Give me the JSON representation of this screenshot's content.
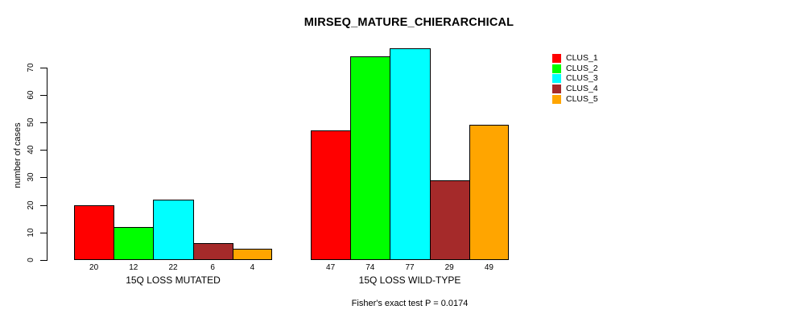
{
  "chart_data": {
    "type": "bar",
    "title": "MIRSEQ_MATURE_CHIERARCHICAL",
    "ylabel": "number of cases",
    "xlabel": "",
    "ylim": [
      0,
      70
    ],
    "yticks": [
      0,
      10,
      20,
      30,
      40,
      50,
      60,
      70
    ],
    "grid": false,
    "legend_position": "right",
    "categories": [
      "15Q LOSS MUTATED",
      "15Q LOSS WILD-TYPE"
    ],
    "series": [
      {
        "name": "CLUS_1",
        "color": "#FF0000",
        "values": [
          20,
          47
        ]
      },
      {
        "name": "CLUS_2",
        "color": "#00FF00",
        "values": [
          12,
          74
        ]
      },
      {
        "name": "CLUS_3",
        "color": "#00FFFF",
        "values": [
          22,
          77
        ]
      },
      {
        "name": "CLUS_4",
        "color": "#A52A2A",
        "values": [
          6,
          29
        ]
      },
      {
        "name": "CLUS_5",
        "color": "#FFA500",
        "values": [
          4,
          49
        ]
      }
    ],
    "bar_value_labels_shown": true,
    "annotation": "Fisher's exact test P = 0.0174"
  }
}
